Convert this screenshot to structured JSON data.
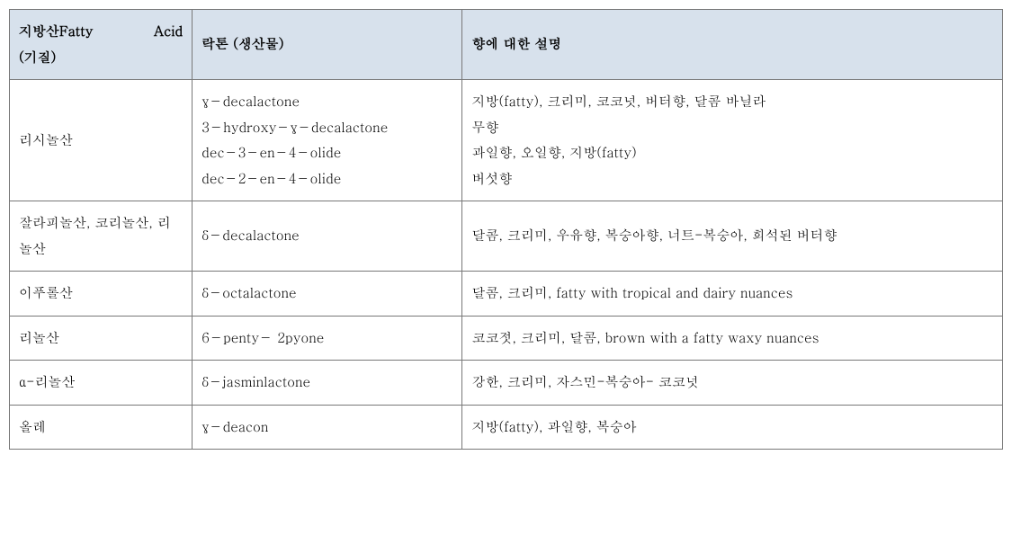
{
  "table": {
    "headers": {
      "col1_line1": "지방산Fatty   Acid",
      "col1_line2": "(기질)",
      "col2": "락톤 (생산물)",
      "col3": "향에 대한 설명"
    },
    "rows": [
      {
        "substrate": "리시놀산",
        "lactone": "γ－decalactone\n3－hydroxy－γ－decalactone\ndec－3－en－4－olide\ndec－2－en－4－olide",
        "description": "지방(fatty), 크리미, 코코넛, 버터향, 달콤 바닐라\n무향\n과일향, 오일향, 지방(fatty)\n버섯향"
      },
      {
        "substrate": "잘라피놀산, 코리놀산, 리놀산",
        "lactone": "δ－decalactone",
        "description": "달콤, 크리미, 우유향, 복숭아향, 너트-복숭아, 희석된 버터향"
      },
      {
        "substrate": "이푸롤산",
        "lactone": "δ－octalactone",
        "description": "달콤,  크리미,  fatty  with  tropical  and  dairy nuances"
      },
      {
        "substrate": "리놀산",
        "lactone": " 6－penty－ 2pyone",
        "description": "코코젓, 크리미, 달콤, brown with a fatty waxy nuances"
      },
      {
        "substrate": "α-리놀산",
        "lactone": "δ－jasminlactone",
        "description": "강한, 크리미, 자스민-복숭아- 코코넛"
      },
      {
        "substrate": "올레",
        "lactone": " γ－deacon",
        "description": "지방(fatty), 과일향, 복숭아"
      }
    ]
  },
  "styles": {
    "header_bg": "#d7e1ec",
    "border_color": "#787878",
    "text_color": "#000000",
    "font_size": 15
  }
}
